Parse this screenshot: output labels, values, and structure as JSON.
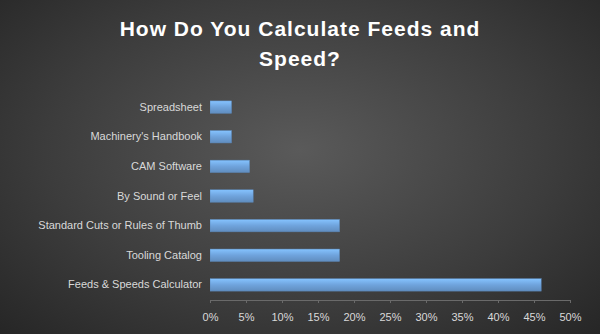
{
  "chart_data": {
    "type": "bar",
    "title": "How Do You Calculate Feeds and Speed?",
    "orientation": "horizontal",
    "categories": [
      "Spreadsheet",
      "Machinery's Handbook",
      "CAM Software",
      "By Sound or Feel",
      "Standard Cuts or Rules of Thumb",
      "Tooling Catalog",
      "Feeds & Speeds Calculator"
    ],
    "values": [
      3,
      3,
      5.5,
      6,
      18,
      18,
      46
    ],
    "color": "#6fa3dc",
    "xlim": [
      0,
      50
    ],
    "xticks": [
      {
        "value": 0,
        "label": "0%"
      },
      {
        "value": 5,
        "label": "5%"
      },
      {
        "value": 10,
        "label": "10%"
      },
      {
        "value": 15,
        "label": "15%"
      },
      {
        "value": 20,
        "label": "20%"
      },
      {
        "value": 25,
        "label": "25%"
      },
      {
        "value": 30,
        "label": "30%"
      },
      {
        "value": 35,
        "label": "35%"
      },
      {
        "value": 40,
        "label": "40%"
      },
      {
        "value": 45,
        "label": "45%"
      },
      {
        "value": 50,
        "label": "50%"
      }
    ],
    "grid": false
  }
}
